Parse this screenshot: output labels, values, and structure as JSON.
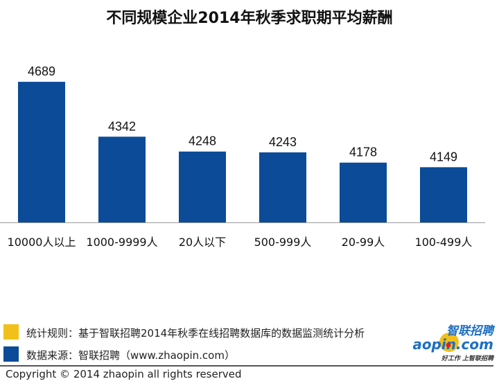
{
  "title": "不同规模企业2014年秋季求职期平均薪酬",
  "chart_data": {
    "type": "bar",
    "title": "不同规模企业2014年秋季求职期平均薪酬",
    "categories": [
      "10000人以上",
      "1000-9999人",
      "20人以下",
      "500-999人",
      "20-99人",
      "100-499人"
    ],
    "values": [
      4689,
      4342,
      4248,
      4243,
      4178,
      4149
    ],
    "xlabel": "",
    "ylabel": "",
    "ylim": [
      3800,
      4720
    ],
    "grid": false,
    "bar_color": "#0b4b98"
  },
  "legend": {
    "items": [
      {
        "color": "#f2c01a",
        "text": "统计规则：基于智联招聘2014年秋季在线招聘数据库的数据监测统计分析"
      },
      {
        "color": "#0b4b98",
        "text": "数据来源：智联招聘（www.zhaopin.com）"
      }
    ]
  },
  "logo": {
    "cn": "智联招聘",
    "en": "zhaopin.com",
    "slogan": "好工作 上智联招聘"
  },
  "copyright": "Copyright  ©  2014 zhaopin all rights reserved"
}
